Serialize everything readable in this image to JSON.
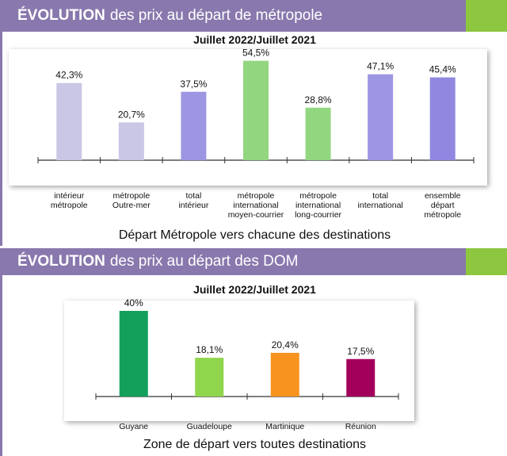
{
  "section1": {
    "title_bold": "ÉVOLUTION",
    "title_rest": "des prix au départ de métropole",
    "footer": "Départ Métropole vers chacune des destinations"
  },
  "section2": {
    "title_bold": "ÉVOLUTION",
    "title_rest": "des prix au départ des DOM",
    "footer": "Zone de départ vers toutes destinations"
  },
  "chart_data": [
    {
      "type": "bar",
      "title": "Juillet 2022/Juillet 2021",
      "ylabel": "",
      "xlabel": "Départ Métropole vers chacune des destinations",
      "categories": [
        [
          "intérieur",
          "métropole"
        ],
        [
          "métropole",
          "Outre-mer"
        ],
        [
          "total",
          "intérieur"
        ],
        [
          "métropole",
          "international",
          "moyen-courrier"
        ],
        [
          "métropole",
          "international",
          "long-courrier"
        ],
        [
          "total",
          "international"
        ],
        [
          "ensemble",
          "départ",
          "métropole"
        ]
      ],
      "values": [
        42.3,
        20.7,
        37.5,
        54.5,
        28.8,
        47.1,
        45.4
      ],
      "labels": [
        "42,3%",
        "20,7%",
        "37,5%",
        "54,5%",
        "28,8%",
        "47,1%",
        "45,4%"
      ],
      "colors": [
        "#c9c7e5",
        "#c9c7e5",
        "#9d96e2",
        "#93d680",
        "#93d680",
        "#9d96e2",
        "#9088e0"
      ],
      "ylim": [
        0,
        60
      ]
    },
    {
      "type": "bar",
      "title": "Juillet 2022/Juillet 2021",
      "xlabel": "Zone de départ vers toutes destinations",
      "categories": [
        [
          "Guyane"
        ],
        [
          "Guadeloupe"
        ],
        [
          "Martinique"
        ],
        [
          "Réunion"
        ]
      ],
      "values": [
        40,
        18.1,
        20.4,
        17.5
      ],
      "labels": [
        "40%",
        "18,1%",
        "20,4%",
        "17,5%"
      ],
      "colors": [
        "#13a05b",
        "#8fd64c",
        "#f7931e",
        "#a3005b"
      ],
      "ylim": [
        0,
        45
      ]
    }
  ]
}
